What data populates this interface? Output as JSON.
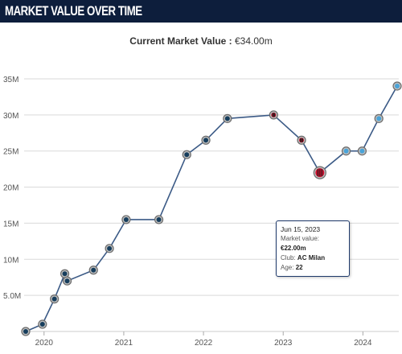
{
  "header": {
    "title": "MARKET VALUE OVER TIME"
  },
  "subtitle": {
    "label": "Current Market Value :",
    "value": "€34.00m"
  },
  "colors": {
    "header_bg": "#0d1e3c",
    "line": "#3b5a86",
    "grid": "#d9d9d9",
    "marker_navy": "#163d5c",
    "marker_acmilan": "#c8102e",
    "marker_lightblue": "#4aa3d8"
  },
  "tooltip": {
    "date": "Jun 15, 2023",
    "market_value_label": "Market value:",
    "market_value": "€22.00m",
    "club_label": "Club:",
    "club": "AC Milan",
    "age_label": "Age:",
    "age": "22"
  },
  "chart_data": {
    "type": "line",
    "title": "",
    "xlabel": "",
    "ylabel": "",
    "ylim": [
      0,
      35
    ],
    "xlim": [
      2019.75,
      2024.45
    ],
    "grid": true,
    "legend": "none",
    "y_ticks": [
      {
        "value": 5,
        "label": "5.0M"
      },
      {
        "value": 10,
        "label": "10M"
      },
      {
        "value": 15,
        "label": "15M"
      },
      {
        "value": 20,
        "label": "20M"
      },
      {
        "value": 25,
        "label": "25M"
      },
      {
        "value": 30,
        "label": "30M"
      },
      {
        "value": 35,
        "label": "35M"
      }
    ],
    "x_ticks": [
      {
        "value": 2020,
        "label": "2020"
      },
      {
        "value": 2021,
        "label": "2021"
      },
      {
        "value": 2022,
        "label": "2022"
      },
      {
        "value": 2023,
        "label": "2023"
      },
      {
        "value": 2024,
        "label": "2024"
      }
    ],
    "points": [
      {
        "x": 2019.77,
        "y": 0.0,
        "club": "navy"
      },
      {
        "x": 2019.98,
        "y": 1.0,
        "club": "navy"
      },
      {
        "x": 2020.13,
        "y": 4.5,
        "club": "navy"
      },
      {
        "x": 2020.26,
        "y": 8.0,
        "club": "navy"
      },
      {
        "x": 2020.29,
        "y": 7.0,
        "club": "navy"
      },
      {
        "x": 2020.62,
        "y": 8.5,
        "club": "navy"
      },
      {
        "x": 2020.82,
        "y": 11.5,
        "club": "navy"
      },
      {
        "x": 2021.03,
        "y": 15.5,
        "club": "navy"
      },
      {
        "x": 2021.44,
        "y": 15.5,
        "club": "navy"
      },
      {
        "x": 2021.79,
        "y": 24.5,
        "club": "navy"
      },
      {
        "x": 2022.03,
        "y": 26.5,
        "club": "navy"
      },
      {
        "x": 2022.3,
        "y": 29.5,
        "club": "navy"
      },
      {
        "x": 2022.88,
        "y": 30.0,
        "club": "acmilan"
      },
      {
        "x": 2023.23,
        "y": 26.5,
        "club": "acmilan"
      },
      {
        "x": 2023.46,
        "y": 22.0,
        "club": "acmilan",
        "highlighted": true
      },
      {
        "x": 2023.79,
        "y": 25.0,
        "club": "lightblue"
      },
      {
        "x": 2023.99,
        "y": 25.0,
        "club": "lightblue"
      },
      {
        "x": 2024.2,
        "y": 29.5,
        "club": "lightblue"
      },
      {
        "x": 2024.43,
        "y": 34.0,
        "club": "lightblue"
      }
    ]
  }
}
